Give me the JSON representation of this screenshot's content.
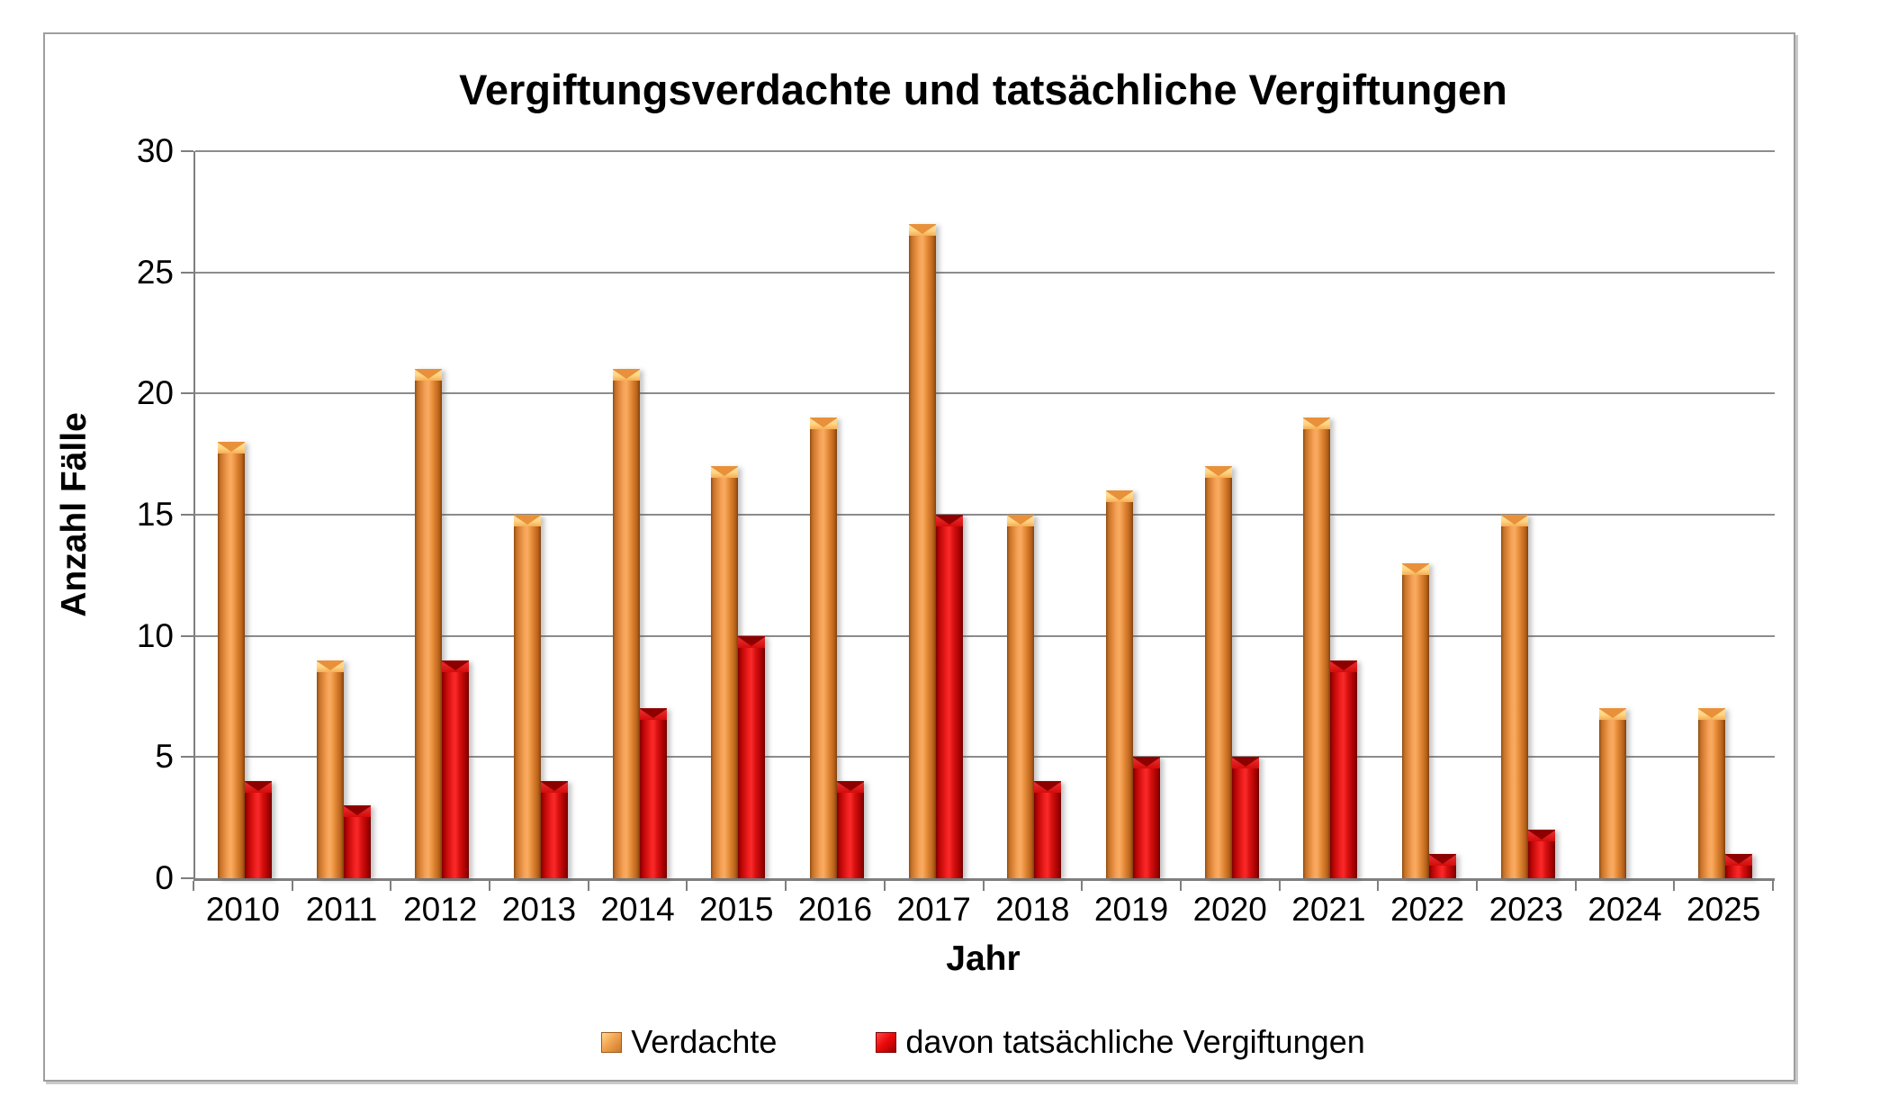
{
  "title": "Vergiftungsverdachte und tatsächliche Vergiftungen",
  "chart_data": {
    "type": "bar",
    "categories": [
      "2010",
      "2011",
      "2012",
      "2013",
      "2014",
      "2015",
      "2016",
      "2017",
      "2018",
      "2019",
      "2020",
      "2021",
      "2022",
      "2023",
      "2024",
      "2025"
    ],
    "series": [
      {
        "name": "Verdachte",
        "color": "#EF9440",
        "values": [
          18,
          9,
          21,
          15,
          21,
          17,
          19,
          27,
          15,
          16,
          17,
          19,
          13,
          15,
          7,
          7
        ]
      },
      {
        "name": "davon tatsächliche Vergiftungen",
        "color": "#EE0B0B",
        "values": [
          4,
          3,
          9,
          4,
          7,
          10,
          4,
          15,
          4,
          5,
          5,
          9,
          1,
          2,
          0,
          1
        ]
      }
    ],
    "xlabel": "Jahr",
    "ylabel": "Anzahl Fälle",
    "ylim": [
      0,
      30
    ],
    "yticks": [
      0,
      5,
      10,
      15,
      20,
      25,
      30
    ],
    "grid": true,
    "legend_position": "bottom"
  },
  "colors": {
    "orange_main": "#EF9440",
    "orange_cap": "#FFD98E",
    "red_main": "#EE0B0B",
    "red_cap": "#C00505",
    "gridline": "#8C8C8C",
    "axis": "#7F7F7F",
    "frame_border": "#9E9E9E",
    "text": "#000000"
  }
}
